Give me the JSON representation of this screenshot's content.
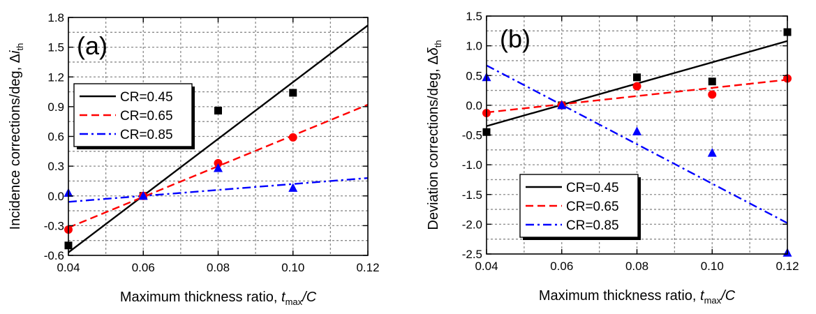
{
  "chart_data": [
    {
      "type": "scatter",
      "panel_label": "(a)",
      "xlabel": "Maximum thickness ratio, ",
      "xlabel_var": "t",
      "xlabel_sub": "max",
      "xlabel_tail": "/C",
      "ylabel": "Incidence corrections/deg, Δ",
      "ylabel_var": "i",
      "ylabel_sub": "th",
      "xlim": [
        0.04,
        0.12
      ],
      "ylim": [
        -0.6,
        1.8
      ],
      "xticks": [
        0.04,
        0.06,
        0.08,
        0.1,
        0.12
      ],
      "xtick_labels": [
        "0.04",
        "0.06",
        "0.08",
        "0.10",
        "0.12"
      ],
      "yticks": [
        -0.6,
        -0.3,
        0.0,
        0.3,
        0.6,
        0.9,
        1.2,
        1.5,
        1.8
      ],
      "ytick_labels": [
        "-0.6",
        "-0.3",
        "0.0",
        "0.3",
        "0.6",
        "0.9",
        "1.2",
        "1.5",
        "1.8"
      ],
      "grid": true,
      "legend_position": "center-left",
      "series": [
        {
          "name": "CR=0.45",
          "color": "#000000",
          "line_style": "solid",
          "marker": "square",
          "points": [
            [
              0.04,
              -0.5
            ],
            [
              0.06,
              0.0
            ],
            [
              0.08,
              0.86
            ],
            [
              0.1,
              1.04
            ]
          ],
          "fit": [
            [
              0.04,
              -0.57
            ],
            [
              0.12,
              1.72
            ]
          ]
        },
        {
          "name": "CR=0.65",
          "color": "#ff0000",
          "line_style": "dashed",
          "marker": "circle",
          "points": [
            [
              0.04,
              -0.34
            ],
            [
              0.06,
              0.0
            ],
            [
              0.08,
              0.33
            ],
            [
              0.1,
              0.59
            ]
          ],
          "fit": [
            [
              0.04,
              -0.32
            ],
            [
              0.12,
              0.92
            ]
          ]
        },
        {
          "name": "CR=0.85",
          "color": "#0000ff",
          "line_style": "dashdot",
          "marker": "triangle",
          "points": [
            [
              0.04,
              0.03
            ],
            [
              0.06,
              0.0
            ],
            [
              0.08,
              0.28
            ],
            [
              0.1,
              0.08
            ]
          ],
          "fit": [
            [
              0.04,
              -0.06
            ],
            [
              0.12,
              0.18
            ]
          ]
        }
      ]
    },
    {
      "type": "scatter",
      "panel_label": "(b)",
      "xlabel": "Maximum thickness ratio, ",
      "xlabel_var": "t",
      "xlabel_sub": "max",
      "xlabel_tail": "/C",
      "ylabel": "Deviation corrections/deg, Δ",
      "ylabel_var": "δ",
      "ylabel_sub": "th",
      "xlim": [
        0.04,
        0.12
      ],
      "ylim": [
        -2.5,
        1.5
      ],
      "xticks": [
        0.04,
        0.06,
        0.08,
        0.1,
        0.12
      ],
      "xtick_labels": [
        "0.04",
        "0.06",
        "0.08",
        "0.10",
        "0.12"
      ],
      "yticks": [
        -2.5,
        -2.0,
        -1.5,
        -1.0,
        -0.5,
        0.0,
        0.5,
        1.0,
        1.5
      ],
      "ytick_labels": [
        "-2.5",
        "-2.0",
        "-1.5",
        "-1.0",
        "-0.5",
        "0.0",
        "0.5",
        "1.0",
        "1.5"
      ],
      "grid": true,
      "legend_position": "bottom-left",
      "series": [
        {
          "name": "CR=0.45",
          "color": "#000000",
          "line_style": "solid",
          "marker": "square",
          "points": [
            [
              0.04,
              -0.45
            ],
            [
              0.06,
              0.0
            ],
            [
              0.08,
              0.47
            ],
            [
              0.1,
              0.4
            ],
            [
              0.12,
              1.23
            ]
          ],
          "fit": [
            [
              0.04,
              -0.35
            ],
            [
              0.12,
              1.08
            ]
          ]
        },
        {
          "name": "CR=0.65",
          "color": "#ff0000",
          "line_style": "dashed",
          "marker": "circle",
          "points": [
            [
              0.04,
              -0.13
            ],
            [
              0.06,
              0.0
            ],
            [
              0.08,
              0.32
            ],
            [
              0.1,
              0.18
            ],
            [
              0.12,
              0.45
            ]
          ],
          "fit": [
            [
              0.04,
              -0.12
            ],
            [
              0.12,
              0.43
            ]
          ]
        },
        {
          "name": "CR=0.85",
          "color": "#0000ff",
          "line_style": "dashdot",
          "marker": "triangle",
          "points": [
            [
              0.04,
              0.47
            ],
            [
              0.06,
              0.0
            ],
            [
              0.08,
              -0.44
            ],
            [
              0.1,
              -0.8
            ],
            [
              0.12,
              -2.48
            ]
          ],
          "fit": [
            [
              0.04,
              0.67
            ],
            [
              0.12,
              -1.98
            ]
          ]
        }
      ]
    }
  ]
}
